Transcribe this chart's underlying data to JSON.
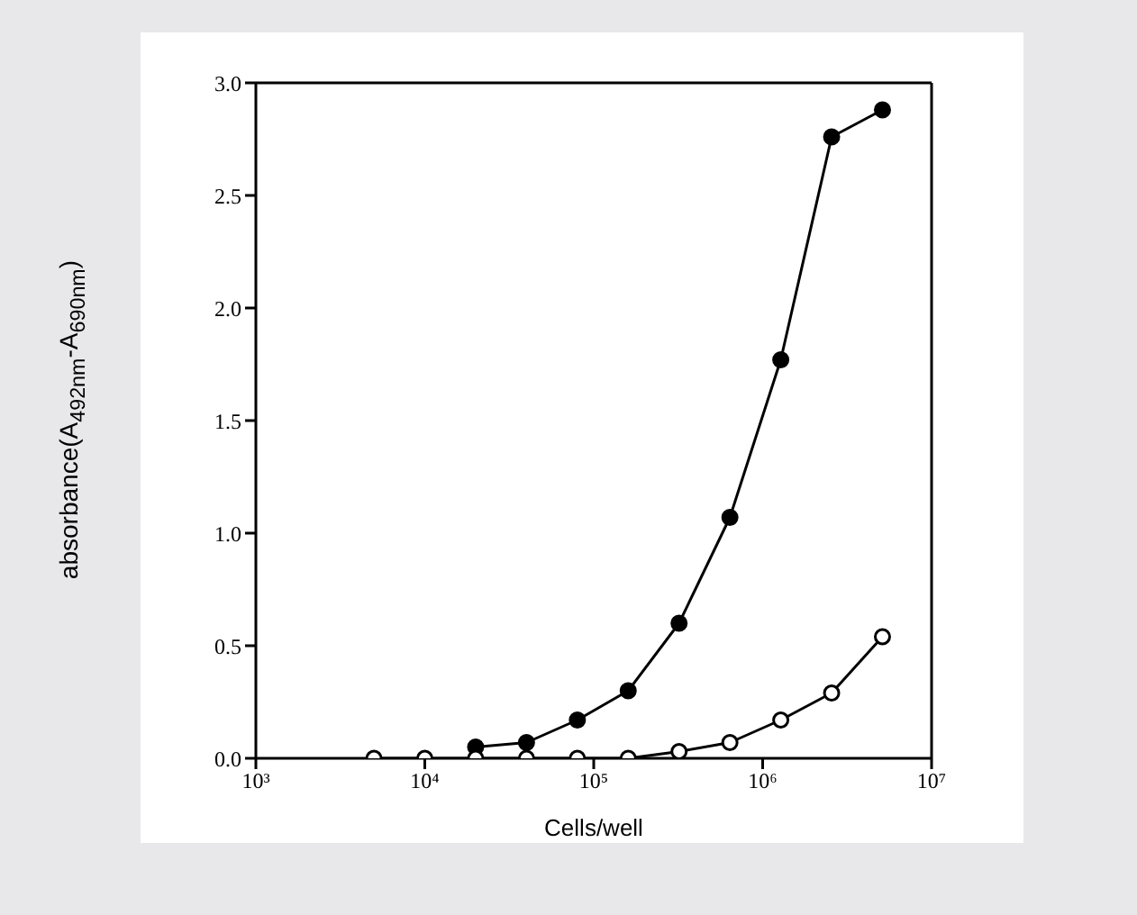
{
  "chart_data": {
    "type": "line",
    "xlabel": "Cells/well",
    "ylabel": "absorbance(A$_{492nm}$-A$_{690nm}$)",
    "x": [
      5000,
      10000,
      20000,
      40000,
      80000,
      160000,
      320000,
      640000,
      1280000,
      2560000,
      5120000
    ],
    "series": [
      {
        "color": "#000000",
        "marker": "circle",
        "values": [
          null,
          null,
          0.05,
          0.07,
          0.17,
          0.3,
          0.6,
          1.07,
          1.77,
          2.76,
          2.88
        ]
      },
      {
        "color": "#000000",
        "marker": "open circle",
        "values": [
          0,
          0,
          0,
          0,
          0,
          0,
          0.03,
          0.07,
          0.17,
          0.29,
          0.54
        ]
      }
    ],
    "log": "x",
    "xlim": [
      1000,
      10000000
    ],
    "xticks": [
      {
        "value": 1000,
        "label": "10³"
      },
      {
        "value": 10000,
        "label": "10⁴"
      },
      {
        "value": 100000,
        "label": "10⁵"
      },
      {
        "value": 1000000,
        "label": "10⁶"
      },
      {
        "value": 10000000,
        "label": "10⁷"
      }
    ],
    "ylim": [
      0,
      3
    ],
    "yticks": [
      {
        "value": 0,
        "label": "0.0"
      },
      {
        "value": 0.5,
        "label": "0.5"
      },
      {
        "value": 1,
        "label": "1.0"
      },
      {
        "value": 1.5,
        "label": "1.5"
      },
      {
        "value": 2,
        "label": "2.0"
      },
      {
        "value": 2.5,
        "label": "2.5"
      },
      {
        "value": 3,
        "label": "3.0"
      }
    ],
    "grid": false,
    "legend": false,
    "line_style": "solid"
  }
}
